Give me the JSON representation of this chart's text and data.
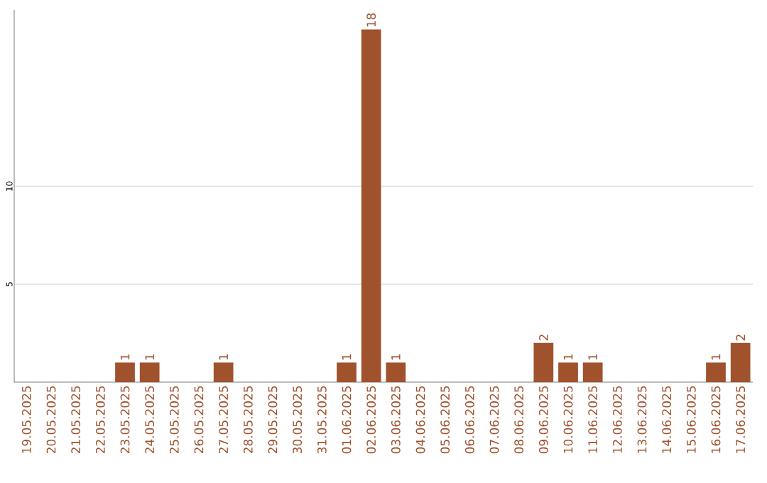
{
  "chart_data": {
    "type": "bar",
    "categories": [
      "19.05.2025",
      "20.05.2025",
      "21.05.2025",
      "22.05.2025",
      "23.05.2025",
      "24.05.2025",
      "25.05.2025",
      "26.05.2025",
      "27.05.2025",
      "28.05.2025",
      "29.05.2025",
      "30.05.2025",
      "31.05.2025",
      "01.06.2025",
      "02.06.2025",
      "03.06.2025",
      "04.06.2025",
      "05.06.2025",
      "06.06.2025",
      "07.06.2025",
      "08.06.2025",
      "09.06.2025",
      "10.06.2025",
      "11.06.2025",
      "12.06.2025",
      "13.06.2025",
      "14.06.2025",
      "15.06.2025",
      "16.06.2025",
      "17.06.2025"
    ],
    "values": [
      0,
      0,
      0,
      0,
      1,
      1,
      0,
      0,
      1,
      0,
      0,
      0,
      0,
      1,
      18,
      1,
      0,
      0,
      0,
      0,
      0,
      2,
      1,
      1,
      0,
      0,
      0,
      0,
      1,
      2
    ],
    "value_labels": [
      null,
      null,
      null,
      null,
      "1",
      "1",
      null,
      null,
      "1",
      null,
      null,
      null,
      null,
      "1",
      "18",
      "1",
      null,
      null,
      null,
      null,
      null,
      "2",
      "1",
      "1",
      null,
      null,
      null,
      null,
      "1",
      "2"
    ],
    "color": "#a0522d",
    "ylim": [
      0,
      19
    ],
    "yticks": [
      5,
      10
    ],
    "grid": "y"
  }
}
